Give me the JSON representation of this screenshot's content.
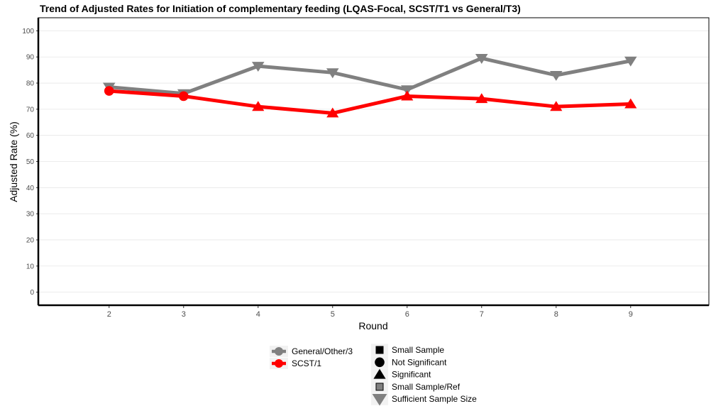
{
  "chart_data": {
    "type": "line",
    "title": "Trend of Adjusted Rates for Initiation of complementary feeding (LQAS-Focal, SCST/T1 vs General/T3)",
    "xlabel": "Round",
    "ylabel": "Adjusted Rate (%)",
    "x": [
      2,
      3,
      4,
      5,
      6,
      7,
      8,
      9
    ],
    "x_ticks": [
      "2",
      "3",
      "4",
      "5",
      "6",
      "7",
      "8",
      "9"
    ],
    "y_ticks": [
      "0",
      "10",
      "20",
      "30",
      "40",
      "50",
      "60",
      "70",
      "80",
      "90",
      "100"
    ],
    "xlim": [
      1.05,
      10.05
    ],
    "ylim": [
      -5,
      105
    ],
    "grid": "horizontal",
    "legend_position": "bottom",
    "series": [
      {
        "name": "General/Other/3",
        "color": "#808080",
        "values": [
          78.5,
          76,
          86.5,
          84,
          77.5,
          89.5,
          83,
          88.5
        ],
        "markers": [
          "triangle-down",
          "triangle-down",
          "triangle-down",
          "triangle-down",
          "triangle-down",
          "triangle-down",
          "triangle-down",
          "triangle-down"
        ]
      },
      {
        "name": "SCST/1",
        "color": "#ff0000",
        "values": [
          77,
          75,
          71,
          68.5,
          75,
          74,
          71,
          72
        ],
        "markers": [
          "circle",
          "circle",
          "triangle-up",
          "triangle-up",
          "triangle-up",
          "triangle-up",
          "triangle-up",
          "triangle-up"
        ]
      }
    ],
    "shape_legend": [
      {
        "label": "Small Sample",
        "shape": "square"
      },
      {
        "label": "Not Significant",
        "shape": "circle"
      },
      {
        "label": "Significant",
        "shape": "triangle-up"
      },
      {
        "label": "Small Sample/Ref",
        "shape": "square-grey"
      },
      {
        "label": "Sufficient Sample Size",
        "shape": "triangle-down"
      }
    ]
  }
}
